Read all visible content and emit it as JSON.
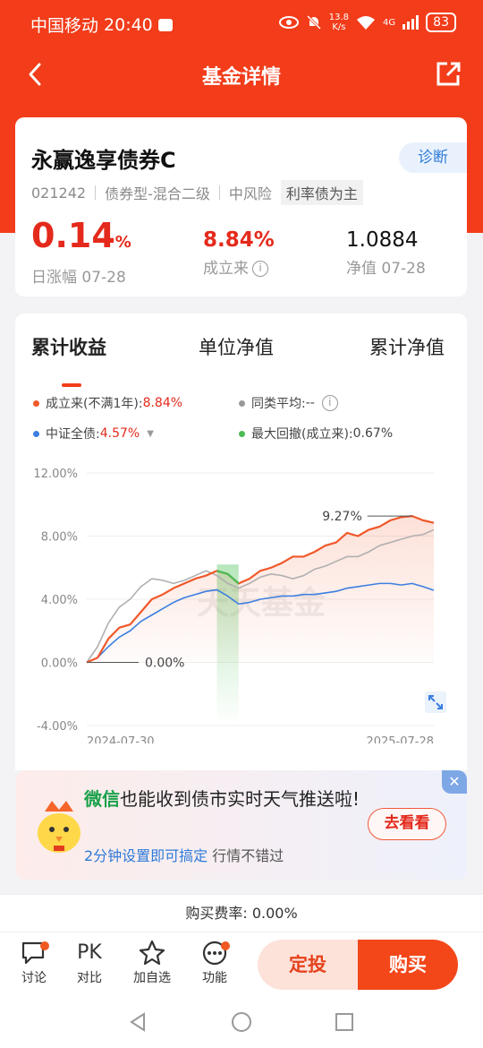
{
  "status": {
    "carrier": "中国移动",
    "time": "20:40",
    "net_speed_value": "13.8",
    "net_speed_unit": "K/s",
    "signal": "4G",
    "battery": "83"
  },
  "nav": {
    "title": "基金详情"
  },
  "fund": {
    "name": "永赢逸享债券C",
    "diag_label": "诊断",
    "code": "021242",
    "type": "债券型-混合二级",
    "risk": "中风险",
    "tag": "利率债为主",
    "daily_change": "0.14",
    "daily_change_unit": "%",
    "daily_change_label": "日涨幅 07-28",
    "since_inception": "8.84%",
    "since_inception_label": "成立来",
    "nav_value": "1.0884",
    "nav_label": "净值 07-28"
  },
  "tabs": [
    "累计收益",
    "单位净值",
    "累计净值"
  ],
  "legend": {
    "s1_label": "成立来(不满1年):",
    "s1_value": "8.84%",
    "s2_label": "同类平均:",
    "s2_value": "--",
    "s3_label": "中证全债:",
    "s3_value": "4.57%",
    "s4_label": "最大回撤(成立来):",
    "s4_value": "0.67%"
  },
  "chart_data": {
    "type": "line",
    "x_start": "2024-07-30",
    "x_end": "2025-07-28",
    "ylim": [
      -4,
      12
    ],
    "yticks": [
      "12.00%",
      "8.00%",
      "4.00%",
      "0.00%",
      "-4.00%"
    ],
    "annotations": {
      "max_label": "9.27%",
      "start_label": "0.00%"
    },
    "watermark": "天天基金",
    "series": [
      {
        "name": "成立来(不满1年)",
        "color": "#f0582a",
        "values": [
          0,
          0.3,
          1.5,
          2.2,
          2.4,
          3.2,
          4,
          4.3,
          4.7,
          5,
          5.3,
          5.5,
          5.8,
          5.6,
          5,
          5.3,
          5.8,
          6,
          6.3,
          6.7,
          6.7,
          7,
          7.4,
          7.6,
          8.2,
          8,
          8.4,
          8.6,
          9,
          9.2,
          9.27,
          9,
          8.84
        ]
      },
      {
        "name": "同类平均",
        "color": "#b0b0b0",
        "values": [
          0,
          1,
          2.5,
          3.5,
          4,
          4.8,
          5.3,
          5.2,
          5,
          5.2,
          5.5,
          5.8,
          5.5,
          5,
          4.7,
          5,
          5.4,
          5.6,
          5.5,
          5.3,
          5.5,
          5.9,
          6.1,
          6.4,
          6.7,
          6.7,
          7,
          7.4,
          7.6,
          7.8,
          8,
          8.1,
          8.4
        ]
      },
      {
        "name": "中证全债",
        "color": "#3c7fe0",
        "values": [
          0,
          0.3,
          1,
          1.6,
          2,
          2.6,
          3,
          3.4,
          3.8,
          4.1,
          4.3,
          4.5,
          4.6,
          4.2,
          3.7,
          3.8,
          4,
          4.1,
          4.2,
          4.2,
          4.3,
          4.3,
          4.4,
          4.5,
          4.7,
          4.8,
          4.9,
          5,
          5,
          4.9,
          5,
          4.8,
          4.57
        ]
      }
    ],
    "drawdown_region": {
      "from_index": 12,
      "to_index": 14
    }
  },
  "promo": {
    "title_highlight": "微信",
    "title_rest": "也能收到债市实时天气推送啦!",
    "sub_highlight": "2分钟设置即可搞定",
    "sub_rest": "行情不错过",
    "button": "去看看"
  },
  "fee": {
    "label": "购买费率:",
    "value": "0.00%"
  },
  "bottom": {
    "discuss": "讨论",
    "pk_icon_text": "PK",
    "compare": "对比",
    "watch": "加自选",
    "functions": "功能",
    "ding": "定投",
    "buy": "购买"
  }
}
